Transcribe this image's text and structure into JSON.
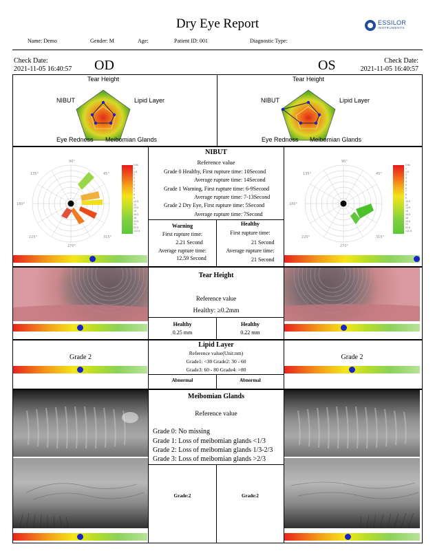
{
  "header": {
    "title": "Dry Eye Report",
    "logo": {
      "brand": "ESSILOR",
      "sub": "INSTRUMENTS"
    },
    "name": "Name: Demo",
    "gender": "Gender: M",
    "age": "Age:",
    "patient_id": "Patient ID: 001",
    "diagnostic_type": "Diagnostic Type:"
  },
  "left": {
    "check_label": "Check Date:",
    "check_date": "2021-11-05 16:40:57",
    "eye": "OD"
  },
  "right": {
    "check_label": "Check Date:",
    "check_date": "2021-11-05 16:40:57",
    "eye": "OS"
  },
  "radar": {
    "labels": {
      "top": "Tear Height",
      "left": "NIBUT",
      "right": "Lipid Layer",
      "bottom_left": "Eye Redness",
      "bottom_right": "Meibomian Glands"
    }
  },
  "legend": {
    "ticks": [
      "0.6s",
      "1",
      "1.5",
      "2",
      "3",
      "4",
      "5",
      "6",
      "7",
      "8",
      "9",
      "10.5",
      "12",
      "13.5",
      "15",
      "16.5",
      "18",
      "19.5",
      "21",
      "22.5",
      ">22.5"
    ]
  },
  "nibut": {
    "heading": "NIBUT",
    "ref_label": "Reference value",
    "lines": [
      "Grade 0 Healthy, First rupture time:  10Second",
      "Average rupture time: 14Second",
      "Grade 1 Warning, First rupture time:  6-9Second",
      "Average rupture time: 7-13Second",
      "Grade 2 Dry Eye, First rupture time:  5Second",
      "Average rupture time: 7Second"
    ],
    "od": {
      "status": "Warning",
      "first_label": "First rupture time:",
      "first_val": "2.21 Second",
      "avg_label": "Average rupture time:",
      "avg_val": "12.59 Second",
      "bar_pos": 0.59
    },
    "os": {
      "status": "Healthy",
      "first_label": "First rupture time:",
      "first_val": "21 Second",
      "avg_label": "Average rupture time:",
      "avg_val": "21 Second",
      "bar_pos": 1.0
    }
  },
  "tear_height": {
    "heading": "Tear Height",
    "ref_label": "Reference value",
    "ref_value": "Healthy:  ≥0.2mm",
    "od": {
      "status": "Healthy",
      "value": "0.25 mm",
      "bar_pos": 0.5
    },
    "os": {
      "status": "Healthy",
      "value": "0.22 mm",
      "bar_pos": 0.44
    }
  },
  "lipid_layer": {
    "heading": "Lipid Layer",
    "ref_label": "Reference value(Unit:nm)",
    "line1": "Grade1: <30 Grade2: 30 - 60",
    "line2": "Grade3: 60 - 80 Grade4: >80",
    "od": {
      "grade": "Grade 2",
      "status": "Abnormal",
      "bar_pos": 0.5
    },
    "os": {
      "grade": "Grade 2",
      "status": "Abnormal",
      "bar_pos": 0.5
    }
  },
  "meibomian": {
    "heading": "Meibomian Glands",
    "ref_label": "Reference value",
    "lines": [
      "Grade 0: No missing",
      "Grade 1: Loss of meibomian glands <1/3",
      "Grade 2: Loss of meibomian glands 1/3-2/3",
      "Grade 3: Loss of meibomian glands >2/3"
    ],
    "od": {
      "grade": "Grade:2",
      "bar_pos": 0.5
    },
    "os": {
      "grade": "Grade:2",
      "bar_pos": 0.47
    }
  },
  "colors": {
    "dot": "#1624c8",
    "radar_inner": "#e02a1a",
    "radar_outer": "#38a020"
  }
}
